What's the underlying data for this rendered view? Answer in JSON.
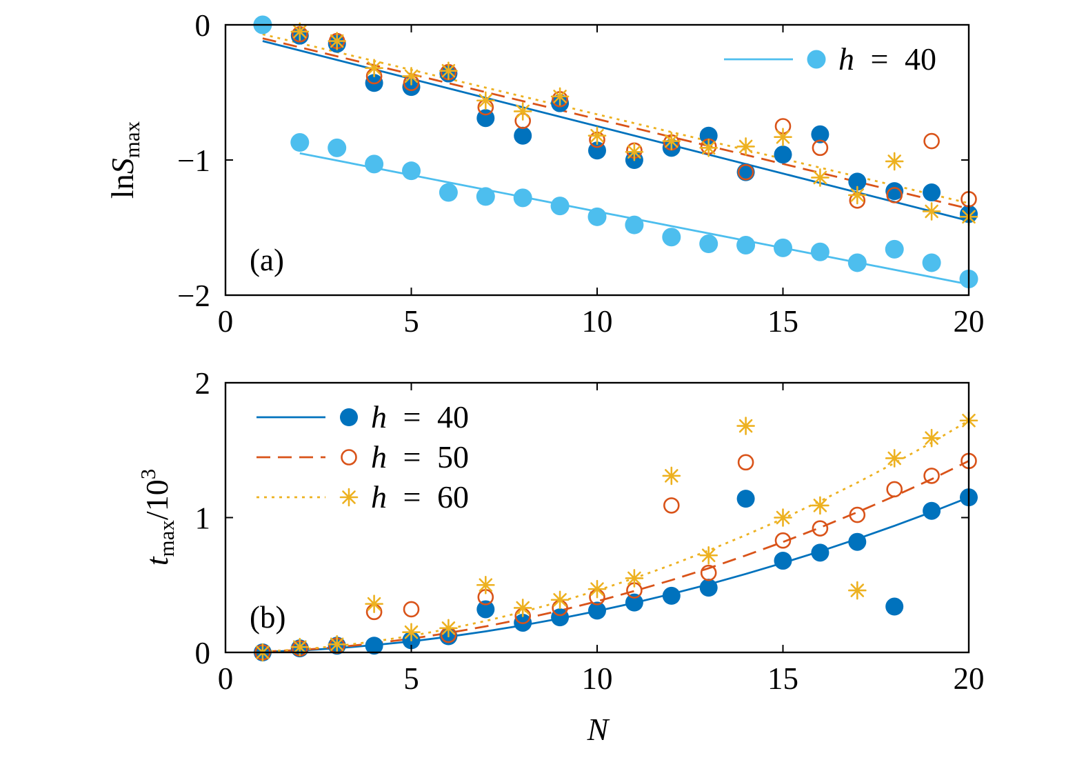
{
  "chart_data": [
    {
      "panel_label": "(a)",
      "type": "scatter",
      "xlabel": "",
      "ylabel": {
        "prefix": "ln",
        "symbol": "S",
        "subscript": "max"
      },
      "xlim": [
        0,
        20
      ],
      "ylim": [
        -2,
        0
      ],
      "xtick_values": [
        0,
        5,
        10,
        15,
        20
      ],
      "xticks": [
        "0",
        "5",
        "10",
        "15",
        "20"
      ],
      "ytick_values": [
        -2,
        -1,
        0
      ],
      "yticks": [
        "−2",
        "−1",
        "0"
      ],
      "grid": false,
      "legend_position": "top-right",
      "x": [
        1,
        2,
        3,
        4,
        5,
        6,
        7,
        8,
        9,
        10,
        11,
        12,
        13,
        14,
        15,
        16,
        17,
        18,
        19,
        20
      ],
      "series": [
        {
          "color": "#0072BD",
          "marker": "filled-circle",
          "legend": false,
          "values": [
            0,
            -0.08,
            -0.14,
            -0.43,
            -0.46,
            -0.36,
            -0.69,
            -0.82,
            -0.58,
            -0.93,
            -1.0,
            -0.91,
            -0.82,
            -1.09,
            -0.96,
            -0.81,
            -1.16,
            -1.23,
            -1.24,
            -1.4
          ],
          "fit": {
            "line": "solid",
            "x": [
              1,
              20
            ],
            "y": [
              -0.12,
              -1.45
            ]
          }
        },
        {
          "color": "#D95319",
          "marker": "open-circle",
          "legend": false,
          "values": [
            0,
            -0.07,
            -0.12,
            -0.38,
            -0.43,
            -0.35,
            -0.61,
            -0.71,
            -0.55,
            -0.85,
            -0.93,
            -0.87,
            -0.9,
            -1.09,
            -0.75,
            -0.91,
            -1.3,
            -1.26,
            -0.86,
            -1.29
          ],
          "fit": {
            "line": "dashed",
            "x": [
              1,
              20
            ],
            "y": [
              -0.1,
              -1.36
            ]
          }
        },
        {
          "color": "#EDB120",
          "marker": "asterisk",
          "legend": false,
          "values": [
            0,
            -0.05,
            -0.12,
            -0.32,
            -0.38,
            -0.34,
            -0.56,
            -0.64,
            -0.53,
            -0.82,
            -0.94,
            -0.86,
            -0.91,
            -0.9,
            -0.83,
            -1.13,
            -1.26,
            -1.01,
            -1.38,
            -1.42
          ],
          "fit": {
            "line": "dotted",
            "x": [
              1,
              20
            ],
            "y": [
              -0.07,
              -1.32
            ]
          }
        },
        {
          "name": "h = 40",
          "color": "#4DBEEE",
          "marker": "filled-circle",
          "legend": true,
          "values": [
            0,
            -0.87,
            -0.91,
            -1.03,
            -1.08,
            -1.24,
            -1.27,
            -1.28,
            -1.34,
            -1.42,
            -1.48,
            -1.57,
            -1.62,
            -1.63,
            -1.65,
            -1.68,
            -1.76,
            -1.66,
            -1.76,
            -1.88
          ],
          "fit": {
            "line": "solid",
            "x": [
              2,
              20
            ],
            "y": [
              -0.95,
              -1.92
            ]
          }
        }
      ]
    },
    {
      "panel_label": "(b)",
      "type": "scatter",
      "xlabel": "N",
      "ylabel": {
        "symbol": "t",
        "subscript": "max",
        "suffix": "/10",
        "superscript": "3"
      },
      "xlim": [
        0,
        20
      ],
      "ylim": [
        0,
        2
      ],
      "xtick_values": [
        0,
        5,
        10,
        15,
        20
      ],
      "xticks": [
        "0",
        "5",
        "10",
        "15",
        "20"
      ],
      "ytick_values": [
        0,
        1,
        2
      ],
      "yticks": [
        "0",
        "1",
        "2"
      ],
      "grid": false,
      "legend_position": "top-left",
      "x": [
        1,
        2,
        3,
        4,
        5,
        6,
        7,
        8,
        9,
        10,
        11,
        12,
        13,
        14,
        15,
        16,
        17,
        18,
        19,
        20
      ],
      "series": [
        {
          "name": "h = 40",
          "color": "#0072BD",
          "marker": "filled-circle",
          "legend": true,
          "values": [
            0,
            0.03,
            0.05,
            0.05,
            0.09,
            0.12,
            0.32,
            0.22,
            0.26,
            0.31,
            0.37,
            0.42,
            0.48,
            1.14,
            0.68,
            0.74,
            0.82,
            0.34,
            1.05,
            1.15
          ],
          "fit": {
            "line": "solid",
            "x": [
              1,
              2,
              3,
              4,
              5,
              6,
              7,
              8,
              9,
              10,
              11,
              12,
              13,
              14,
              15,
              16,
              17,
              18,
              19,
              20
            ],
            "y": [
              0.004,
              0.014,
              0.031,
              0.054,
              0.082,
              0.116,
              0.156,
              0.201,
              0.251,
              0.307,
              0.368,
              0.434,
              0.505,
              0.582,
              0.664,
              0.75,
              0.842,
              0.939,
              1.041,
              1.15
            ]
          }
        },
        {
          "name": "h = 50",
          "color": "#D95319",
          "marker": "open-circle",
          "legend": true,
          "values": [
            0,
            0.03,
            0.05,
            0.3,
            0.32,
            0.13,
            0.41,
            0.27,
            0.33,
            0.41,
            0.46,
            1.09,
            0.59,
            1.41,
            0.83,
            0.92,
            1.02,
            1.21,
            1.31,
            1.42
          ],
          "fit": {
            "line": "dashed",
            "x": [
              1,
              2,
              3,
              4,
              5,
              6,
              7,
              8,
              9,
              10,
              11,
              12,
              13,
              14,
              15,
              16,
              17,
              18,
              19,
              20
            ],
            "y": [
              0.005,
              0.018,
              0.038,
              0.067,
              0.102,
              0.144,
              0.193,
              0.248,
              0.31,
              0.379,
              0.455,
              0.536,
              0.624,
              0.719,
              0.819,
              0.926,
              1.04,
              1.159,
              1.285,
              1.42
            ]
          }
        },
        {
          "name": "h = 60",
          "color": "#EDB120",
          "marker": "asterisk",
          "legend": true,
          "values": [
            0,
            0.04,
            0.06,
            0.36,
            0.15,
            0.18,
            0.5,
            0.33,
            0.39,
            0.47,
            0.55,
            1.31,
            0.72,
            1.68,
            1.0,
            1.09,
            0.46,
            1.44,
            1.59,
            1.72
          ],
          "fit": {
            "line": "dotted",
            "x": [
              1,
              2,
              3,
              4,
              5,
              6,
              7,
              8,
              9,
              10,
              11,
              12,
              13,
              14,
              15,
              16,
              17,
              18,
              19,
              20
            ],
            "y": [
              0.006,
              0.022,
              0.047,
              0.081,
              0.123,
              0.174,
              0.233,
              0.301,
              0.376,
              0.459,
              0.55,
              0.649,
              0.756,
              0.87,
              0.992,
              1.122,
              1.259,
              1.404,
              1.556,
              1.72
            ]
          }
        }
      ]
    }
  ]
}
